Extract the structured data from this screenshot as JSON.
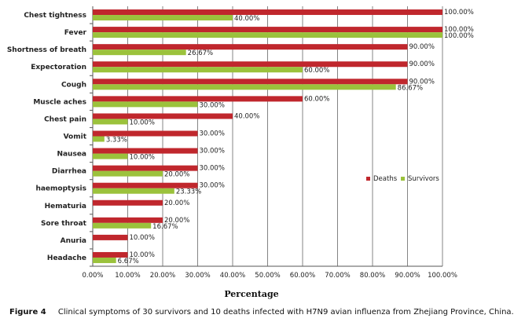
{
  "chart_data": {
    "type": "bar",
    "orientation": "horizontal",
    "categories": [
      "Chest tightness",
      "Fever",
      "Shortness of breath",
      "Expectoration",
      "Cough",
      "Muscle aches",
      "Chest pain",
      "Vomit",
      "Nausea",
      "Diarrhea",
      "haemoptysis",
      "Hematuria",
      "Sore throat",
      "Anuria",
      "Headache"
    ],
    "series": [
      {
        "name": "Deaths",
        "color": "#c0272d",
        "values": [
          100,
          100,
          90,
          90,
          90,
          60,
          40,
          30,
          30,
          30,
          30,
          20,
          20,
          10,
          10
        ],
        "labels": [
          "100.00%",
          "100.00%",
          "90.00%",
          "90.00%",
          "90.00%",
          "60.00%",
          "40.00%",
          "30.00%",
          "30.00%",
          "30.00%",
          "30.00%",
          "20.00%",
          "20.00%",
          "10.00%",
          "10.00%"
        ]
      },
      {
        "name": "Survivors",
        "color": "#9bc23c",
        "values": [
          40,
          100,
          26.67,
          60,
          86.67,
          30,
          10,
          3.33,
          10,
          20,
          23.33,
          null,
          16.67,
          null,
          6.67
        ],
        "labels": [
          "40.00%",
          "100.00%",
          "26.67%",
          "60.00%",
          "86.67%",
          "30.00%",
          "10.00%",
          "3.33%",
          "10.00%",
          "20.00%",
          "23.33%",
          "",
          "16.67%",
          "",
          "6.67%"
        ]
      }
    ],
    "xlabel": "Percentage",
    "xlim": [
      0,
      100
    ],
    "xticks": [
      "0.00%",
      "10.00%",
      "20.00%",
      "30.00%",
      "40.00%",
      "50.00%",
      "60.00%",
      "70.00%",
      "80.00%",
      "90.00%",
      "100.00%"
    ],
    "grid": true,
    "legend": "right"
  },
  "caption": {
    "figure": "Figure 4",
    "text": "Clinical symptoms of 30 survivors and 10 deaths infected with H7N9 avian influenza from Zhejiang Province, China."
  }
}
